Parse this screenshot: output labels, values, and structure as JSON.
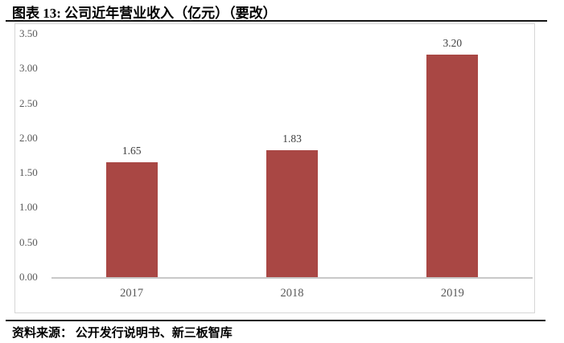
{
  "header": {
    "title": "图表 13: 公司近年营业收入（亿元）（要改）"
  },
  "footer": {
    "source": "资料来源： 公开发行说明书、新三板智库"
  },
  "colors": {
    "bar": "#A94744",
    "axis_text": "#595959",
    "data_label_text": "#3F3F3F",
    "frame_border": "#D6D6D6",
    "axis_line": "#C8C8C8",
    "rule": "#141414"
  },
  "chart_data": {
    "type": "bar",
    "title": "公司近年营业收入（亿元）",
    "categories": [
      "2017",
      "2018",
      "2019"
    ],
    "values": [
      1.65,
      1.83,
      3.2
    ],
    "data_labels": [
      "1.65",
      "1.83",
      "3.20"
    ],
    "xlabel": "",
    "ylabel": "",
    "ylim": [
      0,
      3.5
    ],
    "ytick_step": 0.5,
    "ytick_labels": [
      "0.00",
      "0.50",
      "1.00",
      "1.50",
      "2.00",
      "2.50",
      "3.00",
      "3.50"
    ],
    "grid": false,
    "legend": "none",
    "bar_color": "#A94744"
  }
}
